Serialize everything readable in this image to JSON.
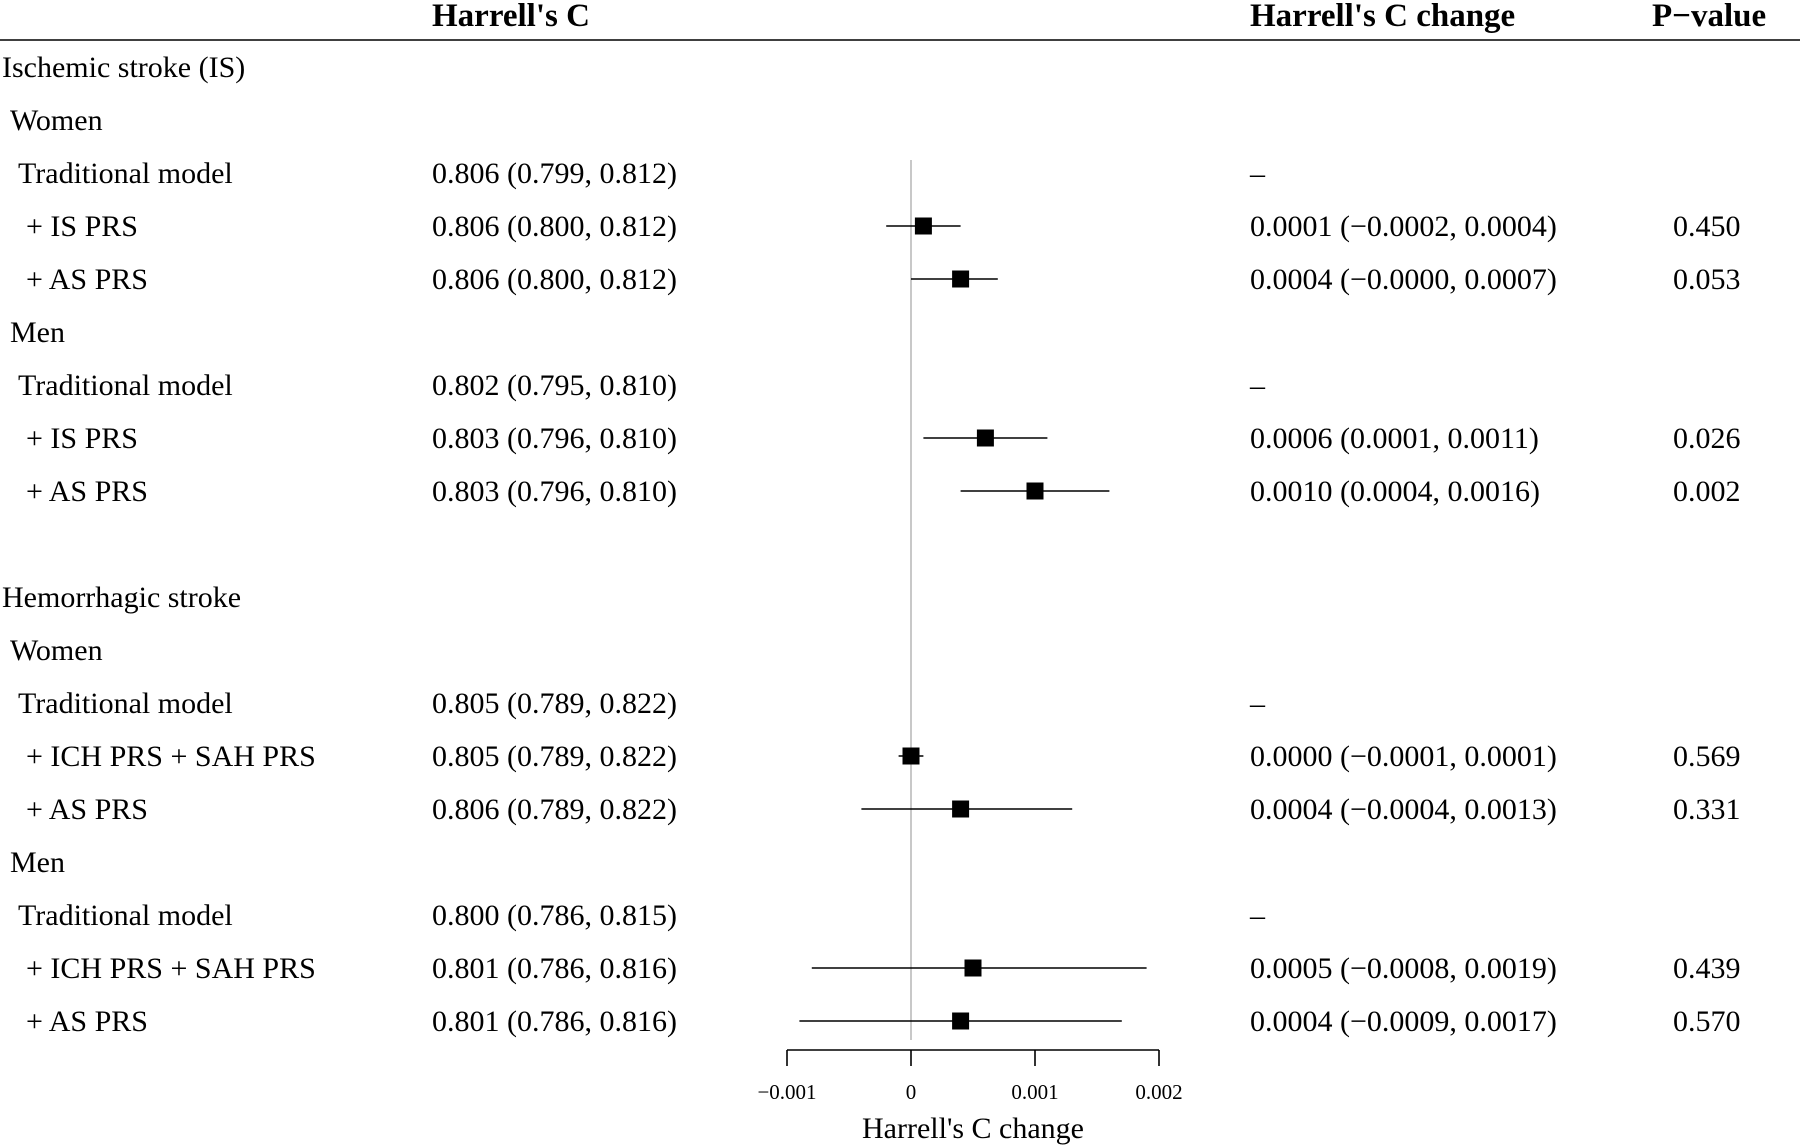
{
  "headers": {
    "harrells_c": "Harrell's C",
    "change": "Harrell's C change",
    "p_value": "P−value"
  },
  "rows": [
    {
      "kind": "section",
      "label": "Ischemic stroke (IS)"
    },
    {
      "kind": "group",
      "label": "Women"
    },
    {
      "kind": "model",
      "label": "Traditional model",
      "c": "0.806 (0.799, 0.812)",
      "change": "–",
      "p": ""
    },
    {
      "kind": "model",
      "label": "+ IS PRS",
      "c": "0.806 (0.800, 0.812)",
      "change": "0.0001 (−0.0002, 0.0004)",
      "p": "0.450"
    },
    {
      "kind": "model",
      "label": "+ AS PRS",
      "c": "0.806 (0.800, 0.812)",
      "change": "0.0004 (−0.0000, 0.0007)",
      "p": "0.053"
    },
    {
      "kind": "group",
      "label": "Men"
    },
    {
      "kind": "model",
      "label": "Traditional model",
      "c": "0.802 (0.795, 0.810)",
      "change": "–",
      "p": ""
    },
    {
      "kind": "model",
      "label": "+ IS PRS",
      "c": "0.803 (0.796, 0.810)",
      "change": "0.0006 (0.0001, 0.0011)",
      "p": "0.026"
    },
    {
      "kind": "model",
      "label": "+ AS PRS",
      "c": "0.803 (0.796, 0.810)",
      "change": "0.0010 (0.0004, 0.0016)",
      "p": "0.002"
    },
    {
      "kind": "blank",
      "label": ""
    },
    {
      "kind": "section",
      "label": "Hemorrhagic stroke"
    },
    {
      "kind": "group",
      "label": "Women"
    },
    {
      "kind": "model",
      "label": "Traditional model",
      "c": "0.805 (0.789, 0.822)",
      "change": "–",
      "p": ""
    },
    {
      "kind": "model",
      "label": "+ ICH PRS + SAH PRS",
      "c": "0.805 (0.789, 0.822)",
      "change": "0.0000 (−0.0001, 0.0001)",
      "p": "0.569"
    },
    {
      "kind": "model",
      "label": "+ AS PRS",
      "c": "0.806 (0.789, 0.822)",
      "change": "0.0004 (−0.0004, 0.0013)",
      "p": "0.331"
    },
    {
      "kind": "group",
      "label": "Men"
    },
    {
      "kind": "model",
      "label": "Traditional model",
      "c": "0.800 (0.786, 0.815)",
      "change": "–",
      "p": ""
    },
    {
      "kind": "model",
      "label": "+ ICH PRS + SAH PRS",
      "c": "0.801 (0.786, 0.816)",
      "change": "0.0005 (−0.0008, 0.0019)",
      "p": "0.439"
    },
    {
      "kind": "model",
      "label": "+ AS PRS",
      "c": "0.801 (0.786, 0.816)",
      "change": "0.0004 (−0.0009, 0.0017)",
      "p": "0.570"
    }
  ],
  "chart_data": {
    "type": "forest",
    "xlabel": "Harrell's C change",
    "xlim": [
      -0.001,
      0.002
    ],
    "x_ticks": [
      -0.001,
      0,
      0.001,
      0.002
    ],
    "x_tick_labels": [
      "−0.001",
      "0",
      "0.001",
      "0.002"
    ],
    "reference_line": 0,
    "points": [
      {
        "row": 3,
        "est": 0.0001,
        "lo": -0.0002,
        "hi": 0.0004
      },
      {
        "row": 4,
        "est": 0.0004,
        "lo": -0.0,
        "hi": 0.0007
      },
      {
        "row": 7,
        "est": 0.0006,
        "lo": 0.0001,
        "hi": 0.0011
      },
      {
        "row": 8,
        "est": 0.001,
        "lo": 0.0004,
        "hi": 0.0016
      },
      {
        "row": 13,
        "est": 0.0,
        "lo": -0.0001,
        "hi": 0.0001
      },
      {
        "row": 14,
        "est": 0.0004,
        "lo": -0.0004,
        "hi": 0.0013
      },
      {
        "row": 17,
        "est": 0.0005,
        "lo": -0.0008,
        "hi": 0.0019
      },
      {
        "row": 18,
        "est": 0.0004,
        "lo": -0.0009,
        "hi": 0.0017
      }
    ]
  }
}
